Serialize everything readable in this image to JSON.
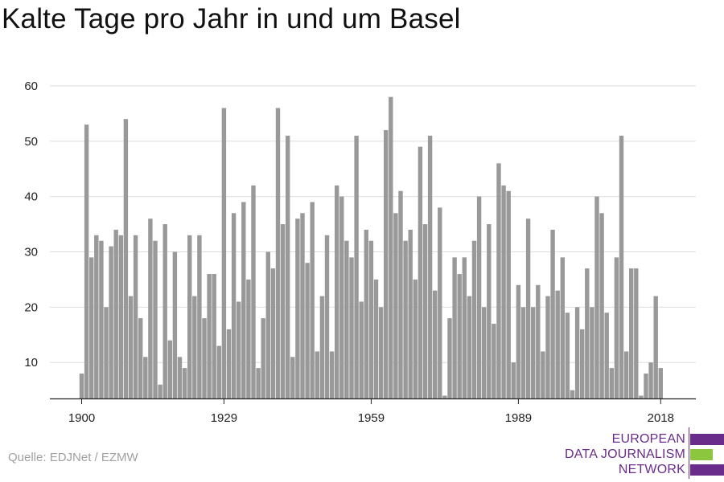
{
  "chart_data": {
    "type": "bar",
    "title": "Kalte Tage pro Jahr in und um Basel",
    "xlabel": "",
    "ylabel": "",
    "x_start": 1900,
    "x_end": 2018,
    "xticks": [
      1900,
      1929,
      1959,
      1989,
      2018
    ],
    "yticks": [
      10,
      20,
      30,
      40,
      50,
      60
    ],
    "ylim": [
      3.5,
      61
    ],
    "grid": true,
    "values": [
      8,
      53,
      29,
      33,
      32,
      20,
      31,
      34,
      33,
      54,
      22,
      33,
      18,
      11,
      36,
      32,
      6,
      35,
      14,
      30,
      11,
      9,
      33,
      22,
      33,
      18,
      26,
      26,
      13,
      56,
      16,
      37,
      21,
      39,
      25,
      42,
      9,
      18,
      30,
      27,
      56,
      35,
      51,
      11,
      36,
      37,
      28,
      39,
      12,
      22,
      33,
      12,
      42,
      40,
      32,
      29,
      51,
      21,
      34,
      32,
      25,
      20,
      52,
      58,
      37,
      41,
      32,
      34,
      25,
      49,
      35,
      51,
      23,
      38,
      4,
      18,
      29,
      26,
      29,
      22,
      32,
      40,
      20,
      35,
      17,
      46,
      42,
      41,
      10,
      24,
      20,
      36,
      20,
      24,
      12,
      22,
      34,
      23,
      29,
      19,
      5,
      20,
      16,
      27,
      20,
      40,
      37,
      19,
      9,
      29,
      51,
      12,
      27,
      27,
      4,
      8,
      10,
      22,
      9
    ],
    "bar_color": "#999999"
  },
  "source": "Quelle: EDJNet / EZMW",
  "logo": {
    "line1": "EUROPEAN",
    "line2": "DATA JOURNALISM",
    "line3": "NETWORK",
    "primary_color": "#6a2c8a",
    "accent_color": "#8cc63f"
  }
}
